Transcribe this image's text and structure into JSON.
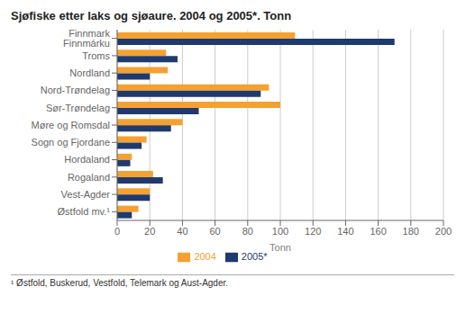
{
  "chart_data": {
    "type": "bar",
    "orientation": "horizontal",
    "title": "Sjøfiske etter laks og sjøaure. 2004 og 2005*. Tonn",
    "categories": [
      "Finnmark Finnmárku",
      "Troms",
      "Nordland",
      "Nord-Trøndelag",
      "Sør-Trøndelag",
      "Møre og Romsdal",
      "Sogn og Fjordane",
      "Hordaland",
      "Rogaland",
      "Vest-Agder",
      "Østfold mv.¹"
    ],
    "series": [
      {
        "name": "2004",
        "color": "#f5a131",
        "values": [
          109,
          30,
          31,
          93,
          100,
          40,
          18,
          9,
          22,
          20,
          13
        ]
      },
      {
        "name": "2005*",
        "color": "#1f3a6e",
        "values": [
          170,
          37,
          20,
          88,
          50,
          33,
          15,
          8,
          28,
          20,
          9
        ]
      }
    ],
    "xlabel": "Tonn",
    "xlim": [
      0,
      200
    ],
    "xticks": [
      0,
      20,
      40,
      60,
      80,
      100,
      120,
      140,
      160,
      180,
      200
    ],
    "grid": true,
    "legend": "bottom",
    "annotations": [
      "¹ Østfold, Buskerud, Vestfold, Telemark og Aust-Agder."
    ]
  }
}
